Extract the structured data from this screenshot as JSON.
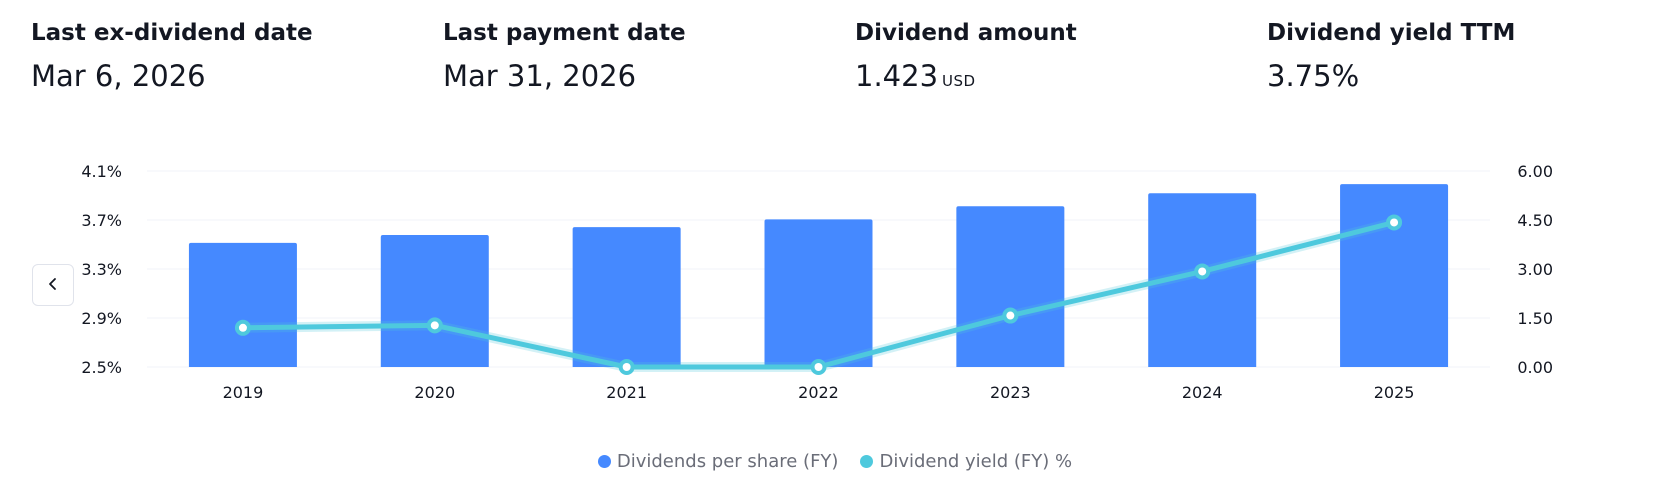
{
  "stats": [
    {
      "label": "Last ex-dividend date",
      "value": "Mar 6, 2026",
      "unit": ""
    },
    {
      "label": "Last payment date",
      "value": "Mar 31, 2026",
      "unit": ""
    },
    {
      "label": "Dividend amount",
      "value": "1.423",
      "unit": "USD"
    },
    {
      "label": "Dividend yield TTM",
      "value": "3.75%",
      "unit": ""
    }
  ],
  "colors": {
    "bar": "#4589ff",
    "line": "#4ec9dd",
    "grid": "#f0f3fa",
    "text": "#131722",
    "muted": "#6a6d78"
  },
  "icons": {
    "prev": "chevron-left-icon"
  },
  "chart_data": {
    "type": "bar",
    "categories": [
      "2019",
      "2020",
      "2021",
      "2022",
      "2023",
      "2024",
      "2025"
    ],
    "series": [
      {
        "name": "Dividends per share (FY)",
        "type": "bar",
        "axis": "right",
        "values": [
          3.8,
          4.04,
          4.28,
          4.52,
          4.92,
          5.32,
          5.6
        ],
        "color": "#4589ff"
      },
      {
        "name": "Dividend yield (FY) %",
        "type": "line",
        "axis": "left",
        "values": [
          2.82,
          2.84,
          2.5,
          2.5,
          2.92,
          3.28,
          3.68
        ],
        "color": "#4ec9dd"
      }
    ],
    "left_axis": {
      "ticks": [
        "4.1%",
        "3.7%",
        "3.3%",
        "2.9%",
        "2.5%"
      ],
      "values": [
        4.1,
        3.7,
        3.3,
        2.9,
        2.5
      ],
      "ylim": [
        2.5,
        4.1
      ]
    },
    "right_axis": {
      "ticks": [
        "6.00",
        "4.50",
        "3.00",
        "1.50",
        "0.00"
      ],
      "values": [
        6,
        4.5,
        3,
        1.5,
        0
      ],
      "ylim": [
        0,
        6
      ]
    },
    "legend": {
      "position": "bottom-center",
      "items": [
        "Dividends per share (FY)",
        "Dividend yield (FY) %"
      ]
    },
    "grid": true,
    "title": "",
    "xlabel": "",
    "ylabel": ""
  }
}
